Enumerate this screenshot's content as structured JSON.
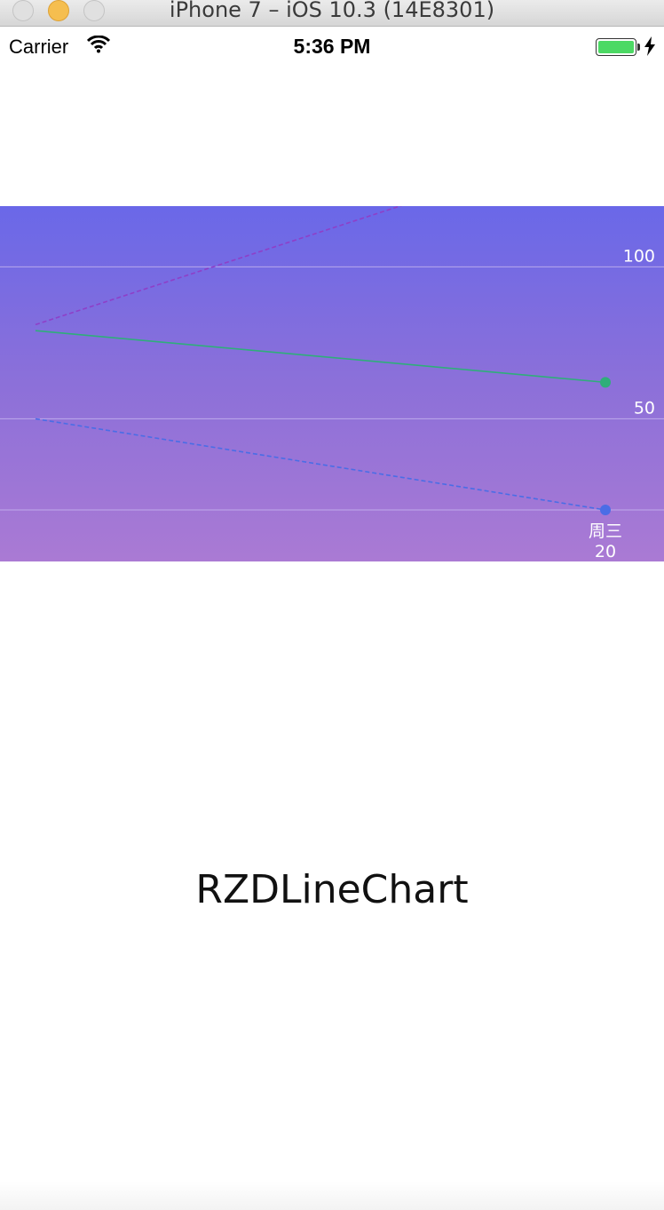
{
  "window": {
    "title": "iPhone 7 – iOS 10.3 (14E8301)"
  },
  "status_bar": {
    "carrier": "Carrier",
    "time": "5:36 PM",
    "battery_level": 1.0,
    "charging": true
  },
  "caption": "RZDLineChart",
  "colors": {
    "chart_gradient_top": "#6a68e8",
    "chart_gradient_bottom": "#aa7ad4",
    "series_purple": "#8e3fc8",
    "series_green": "#2fae7a",
    "series_blue": "#4a6de6",
    "gridline": "#c8b8f0",
    "battery_green": "#4cd964"
  },
  "chart_data": {
    "type": "line",
    "y_ticks": [
      "100",
      "50"
    ],
    "x_label": "周三",
    "x_value_label": "20",
    "ylim": [
      20,
      120
    ],
    "grid": true,
    "series": [
      {
        "style": "dashed",
        "color": "#8e3fc8",
        "values": [
          81,
          142
        ]
      },
      {
        "style": "solid",
        "color": "#2fae7a",
        "values": [
          79,
          62
        ]
      },
      {
        "style": "dashed",
        "color": "#4a6de6",
        "values": [
          50,
          20
        ]
      }
    ]
  }
}
